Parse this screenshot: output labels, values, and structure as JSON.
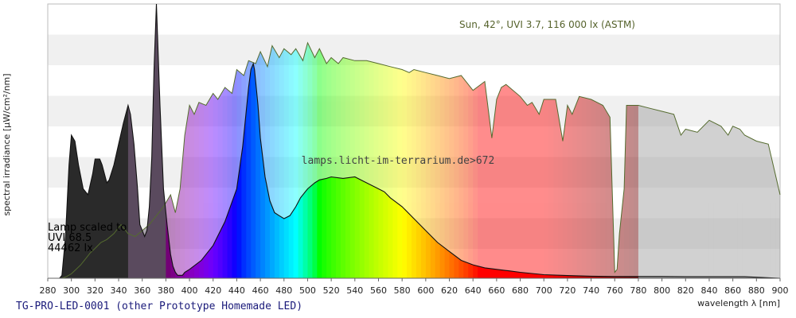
{
  "chart_data": {
    "type": "area",
    "title": "TG-PRO-LED-0001 (other Prototype Homemade LED)",
    "xlabel": "wavelength λ [nm]",
    "ylabel": "spectral irradiance [µW/cm²/nm]",
    "xlim": [
      280,
      900
    ],
    "x_ticks": [
      280,
      300,
      320,
      340,
      360,
      380,
      400,
      420,
      440,
      460,
      480,
      500,
      520,
      540,
      560,
      580,
      600,
      620,
      640,
      660,
      680,
      700,
      720,
      740,
      760,
      780,
      800,
      820,
      840,
      860,
      880,
      900
    ],
    "grid": "horizontal bands",
    "annotations": {
      "sun_reference": "Sun, 42°, UVI 3.7, 116 000 lx (ASTM)",
      "watermark": "lamps.licht-im-terrarium.de>672",
      "lamp_scaled_line1": "Lamp scaled to",
      "lamp_scaled_line2": "UVI 68.5",
      "lamp_scaled_line3": "44462 lx"
    },
    "series": [
      {
        "name": "Sun, 42°, UVI 3.7, 116 000 lx (ASTM)",
        "x": [
          280,
          292,
          296,
          300,
          304,
          308,
          312,
          316,
          320,
          325,
          330,
          336,
          342,
          348,
          354,
          360,
          366,
          372,
          378,
          384,
          388,
          392,
          396,
          400,
          404,
          408,
          414,
          420,
          424,
          430,
          436,
          440,
          446,
          450,
          456,
          460,
          466,
          470,
          476,
          480,
          486,
          490,
          496,
          500,
          506,
          510,
          516,
          520,
          526,
          530,
          540,
          550,
          560,
          570,
          580,
          586,
          590,
          600,
          610,
          620,
          630,
          640,
          650,
          656,
          660,
          664,
          668,
          680,
          686,
          690,
          696,
          700,
          710,
          716,
          720,
          724,
          730,
          740,
          750,
          756,
          760,
          762,
          764,
          768,
          770,
          780,
          790,
          800,
          810,
          816,
          820,
          830,
          840,
          850,
          856,
          860,
          866,
          870,
          880,
          890,
          900
        ],
        "y": [
          0,
          0,
          0.6,
          1.5,
          3,
          4.5,
          6.5,
          8.5,
          10,
          12,
          13,
          15,
          18,
          15,
          14,
          16,
          18,
          21,
          24,
          28,
          22,
          30,
          48,
          58,
          55,
          59,
          58,
          62,
          60,
          64,
          62,
          70,
          68,
          73,
          72,
          76,
          71,
          78,
          74,
          77,
          75,
          77,
          73,
          79,
          74,
          77,
          72,
          74,
          72,
          74,
          73,
          73,
          72,
          71,
          70,
          69,
          70,
          69,
          68,
          67,
          68,
          63,
          66,
          47,
          60,
          64,
          65,
          61,
          58,
          59,
          55,
          60,
          60,
          46,
          58,
          55,
          61,
          60,
          58,
          54,
          2,
          3,
          15,
          30,
          58,
          58,
          57,
          56,
          55,
          48,
          50,
          49,
          53,
          51,
          48,
          51,
          50,
          48,
          46,
          45,
          28
        ]
      },
      {
        "name": "TG-PRO-LED-0001",
        "x": [
          280,
          290,
          292,
          295,
          298,
          300,
          303,
          306,
          310,
          314,
          318,
          320,
          324,
          326,
          330,
          332,
          336,
          340,
          344,
          348,
          350,
          353,
          356,
          358,
          362,
          364,
          366,
          368,
          370,
          372,
          375,
          378,
          381,
          384,
          386,
          388,
          390,
          394,
          396,
          400,
          410,
          420,
          430,
          440,
          445,
          450,
          452,
          454,
          455,
          456,
          458,
          460,
          464,
          468,
          472,
          476,
          480,
          485,
          490,
          494,
          500,
          506,
          510,
          516,
          520,
          530,
          540,
          550,
          560,
          565,
          570,
          580,
          590,
          600,
          610,
          620,
          630,
          640,
          650,
          660,
          670,
          680,
          690,
          700,
          720,
          740,
          760,
          780,
          800,
          820,
          840,
          860,
          870,
          900
        ],
        "y": [
          0,
          0,
          1,
          14,
          38,
          48,
          46,
          38,
          30,
          28,
          35,
          40,
          40,
          38,
          32,
          33,
          38,
          45,
          52,
          58,
          55,
          45,
          30,
          18,
          14,
          16,
          24,
          40,
          70,
          92,
          58,
          30,
          18,
          8,
          4,
          2,
          1,
          1,
          2,
          3,
          6,
          11,
          19,
          30,
          44,
          64,
          70,
          72,
          70,
          66,
          58,
          47,
          34,
          26,
          22,
          21,
          20,
          21,
          24,
          27,
          30,
          32,
          33,
          33.5,
          34,
          33.5,
          34,
          32,
          30,
          29,
          27,
          24,
          20,
          16,
          12,
          9,
          6,
          4.5,
          3.5,
          3,
          2.5,
          2,
          1.6,
          1.2,
          0.9,
          0.7,
          0.6,
          0.6,
          0.6,
          0.5,
          0.5,
          0.5,
          0.5,
          0
        ]
      }
    ],
    "colors": {
      "band_gray": "#f0f0f0",
      "sun_line": "#556b2f",
      "lamp_line": "#111111",
      "uv_dark": "#2a2a2a",
      "uv_purple_dark": "#5a4a5e",
      "ir_gray": "#9a9a9a",
      "footer_text": "#1a1a7a"
    }
  }
}
